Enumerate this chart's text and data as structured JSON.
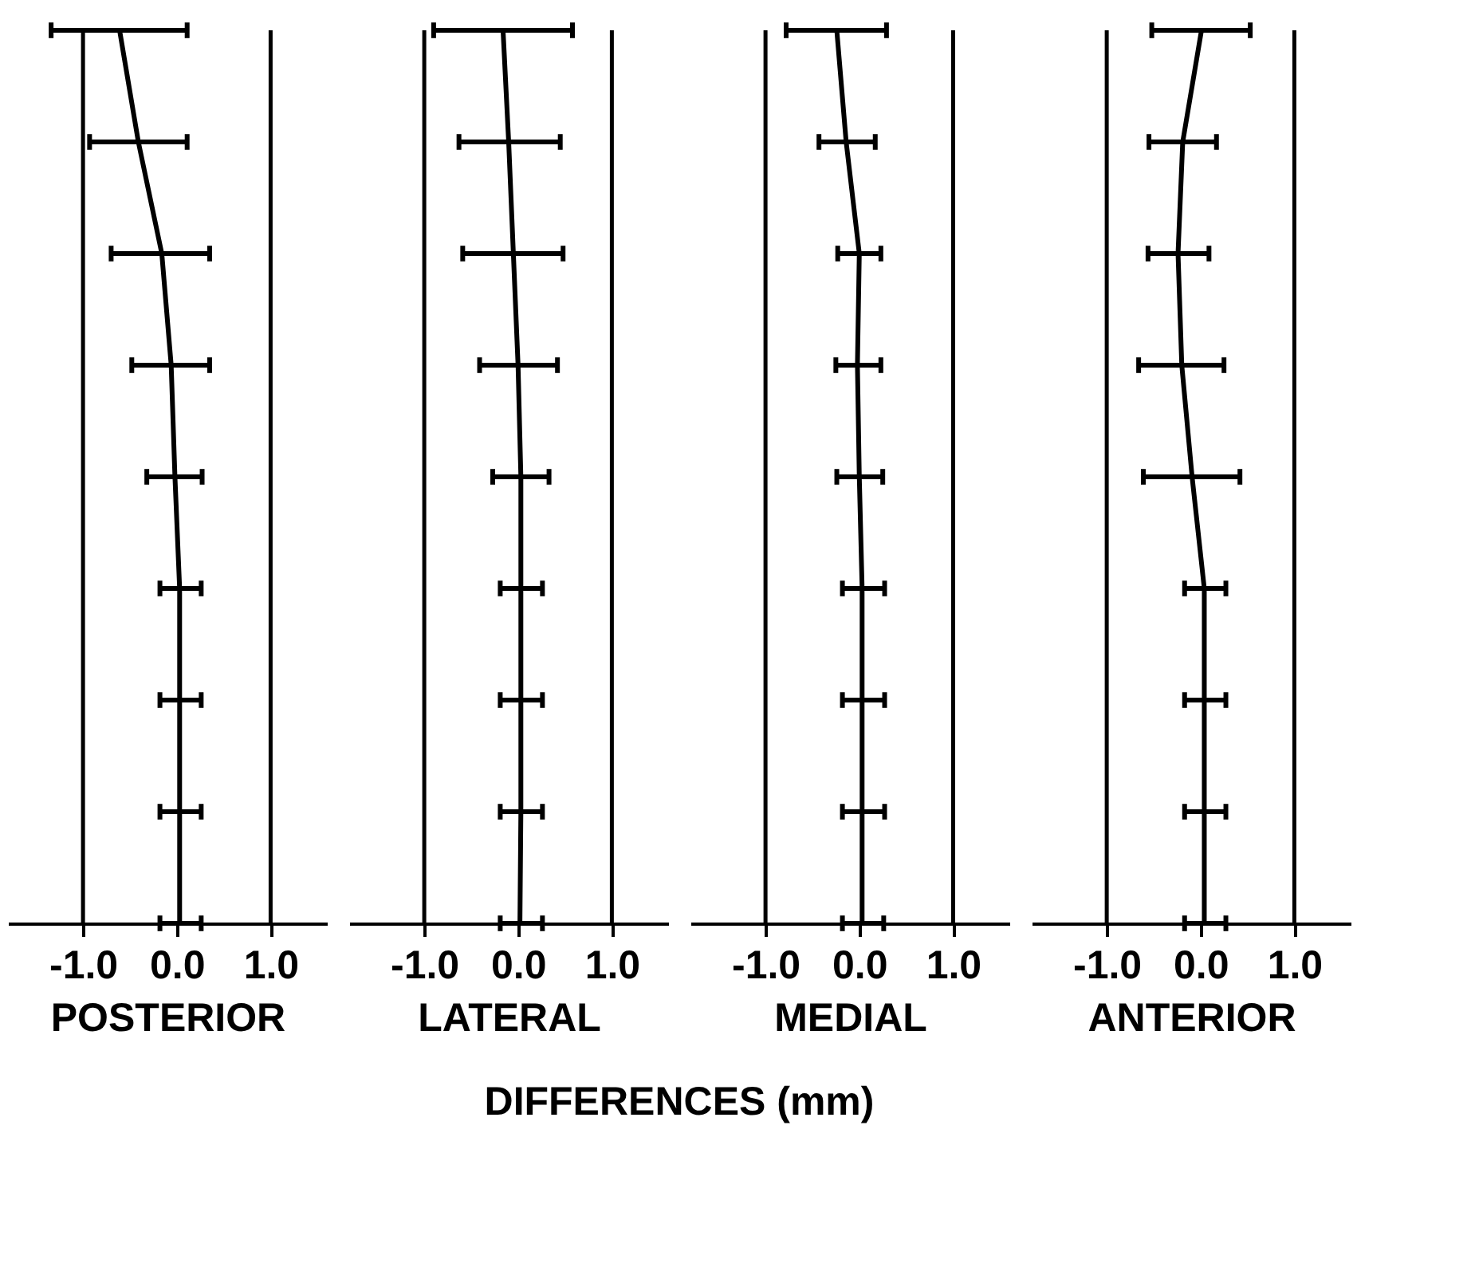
{
  "chart_data": [
    {
      "type": "line",
      "orientation": "horizontal",
      "xlabel": "POSTERIOR",
      "categories": [
        null,
        null,
        null,
        null,
        null,
        null,
        null,
        null,
        null
      ],
      "xlim": [
        -1.8,
        1.6
      ],
      "xticks": [
        {
          "value": -1,
          "label": "-1.0"
        },
        {
          "value": 0,
          "label": "0.0"
        },
        {
          "value": 1,
          "label": "1.0"
        }
      ],
      "series": [
        {
          "color": "#000000",
          "values": [
            -0.61,
            -0.41,
            -0.16,
            -0.06,
            -0.02,
            0.03,
            0.03,
            0.03,
            0.03
          ],
          "errors": [
            [
              -1.34,
              0.11
            ],
            [
              -0.93,
              0.11
            ],
            [
              -0.7,
              0.35
            ],
            [
              -0.48,
              0.35
            ],
            [
              -0.32,
              0.27
            ],
            [
              -0.18,
              0.26
            ],
            [
              -0.18,
              0.26
            ],
            [
              -0.18,
              0.26
            ],
            [
              -0.18,
              0.26
            ]
          ]
        }
      ],
      "ref_lines": [
        {
          "axis": "x",
          "value": -1,
          "color": "#000000"
        },
        {
          "axis": "x",
          "value": 1,
          "color": "#000000"
        }
      ],
      "annotations": [
        "DIFFERENCES (mm)"
      ]
    },
    {
      "type": "line",
      "orientation": "horizontal",
      "xlabel": "LATERAL",
      "categories": [
        null,
        null,
        null,
        null,
        null,
        null,
        null,
        null,
        null
      ],
      "xlim": [
        -1.8,
        1.6
      ],
      "xticks": [
        {
          "value": -1,
          "label": "-1.0"
        },
        {
          "value": 0,
          "label": "0.0"
        },
        {
          "value": 1,
          "label": "1.0"
        }
      ],
      "series": [
        {
          "color": "#000000",
          "values": [
            -0.16,
            -0.1,
            -0.05,
            0.0,
            0.03,
            0.03,
            0.03,
            0.03,
            0.02
          ],
          "errors": [
            [
              -0.9,
              0.58
            ],
            [
              -0.63,
              0.45
            ],
            [
              -0.59,
              0.48
            ],
            [
              -0.41,
              0.42
            ],
            [
              -0.27,
              0.33
            ],
            [
              -0.19,
              0.26
            ],
            [
              -0.19,
              0.26
            ],
            [
              -0.19,
              0.26
            ],
            [
              -0.19,
              0.26
            ]
          ]
        }
      ],
      "ref_lines": [
        {
          "axis": "x",
          "value": -1,
          "color": "#000000"
        },
        {
          "axis": "x",
          "value": 1,
          "color": "#000000"
        }
      ]
    },
    {
      "type": "line",
      "orientation": "horizontal",
      "xlabel": "MEDIAL",
      "categories": [
        null,
        null,
        null,
        null,
        null,
        null,
        null,
        null,
        null
      ],
      "xlim": [
        -1.8,
        1.6
      ],
      "xticks": [
        {
          "value": -1,
          "label": "-1.0"
        },
        {
          "value": 0,
          "label": "0.0"
        },
        {
          "value": 1,
          "label": "1.0"
        }
      ],
      "series": [
        {
          "color": "#000000",
          "values": [
            -0.24,
            -0.14,
            0.0,
            -0.02,
            0.0,
            0.03,
            0.03,
            0.03,
            0.03
          ],
          "errors": [
            [
              -0.78,
              0.29
            ],
            [
              -0.43,
              0.17
            ],
            [
              -0.23,
              0.23
            ],
            [
              -0.25,
              0.23
            ],
            [
              -0.24,
              0.25
            ],
            [
              -0.18,
              0.27
            ],
            [
              -0.18,
              0.27
            ],
            [
              -0.18,
              0.27
            ],
            [
              -0.18,
              0.26
            ]
          ]
        }
      ],
      "ref_lines": [
        {
          "axis": "x",
          "value": -1,
          "color": "#000000"
        },
        {
          "axis": "x",
          "value": 1,
          "color": "#000000"
        }
      ]
    },
    {
      "type": "line",
      "orientation": "horizontal",
      "xlabel": "ANTERIOR",
      "categories": [
        null,
        null,
        null,
        null,
        null,
        null,
        null,
        null,
        null
      ],
      "xlim": [
        -1.8,
        1.6
      ],
      "xticks": [
        {
          "value": -1,
          "label": "-1.0"
        },
        {
          "value": 0,
          "label": "0.0"
        },
        {
          "value": 1,
          "label": "1.0"
        }
      ],
      "series": [
        {
          "color": "#000000",
          "values": [
            0.01,
            -0.19,
            -0.24,
            -0.2,
            -0.09,
            0.04,
            0.04,
            0.04,
            0.04
          ],
          "errors": [
            [
              -0.52,
              0.53
            ],
            [
              -0.55,
              0.17
            ],
            [
              -0.56,
              0.09
            ],
            [
              -0.66,
              0.25
            ],
            [
              -0.61,
              0.42
            ],
            [
              -0.17,
              0.27
            ],
            [
              -0.17,
              0.27
            ],
            [
              -0.17,
              0.27
            ],
            [
              -0.17,
              0.27
            ]
          ]
        }
      ],
      "ref_lines": [
        {
          "axis": "x",
          "value": -1,
          "color": "#000000"
        },
        {
          "axis": "x",
          "value": 1,
          "color": "#000000"
        }
      ]
    }
  ]
}
